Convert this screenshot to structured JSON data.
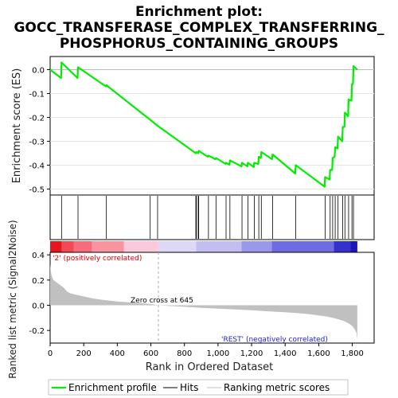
{
  "title_lines": [
    "Enrichment plot:",
    "GOCC_TRANSFERASE_COMPLEX_TRANSFERRING_",
    "PHOSPHORUS_CONTAINING_GROUPS"
  ],
  "colors": {
    "es_line": "#00ee00",
    "hits": "#000000",
    "metric_fill": "#c0c0c0",
    "pos_label": "#dd0000",
    "neg_label": "#2222cc",
    "zero_cross_line": "#aaaaaa"
  },
  "chart_data": [
    {
      "type": "line",
      "name": "enrichment-profile",
      "ylabel": "Enrichment score (ES)",
      "xlim": [
        0,
        1930
      ],
      "ylim": [
        -0.525,
        0.055
      ],
      "yticks": [
        0.0,
        -0.1,
        -0.2,
        -0.3,
        -0.4,
        -0.5
      ],
      "ytick_labels": [
        "0.0",
        "-0.1",
        "-0.2",
        "-0.3",
        "-0.4",
        "-0.5"
      ],
      "x": [
        0,
        65,
        68,
        163,
        166,
        332,
        335,
        596,
        640,
        868,
        871,
        882,
        885,
        940,
        943,
        985,
        988,
        1045,
        1048,
        1068,
        1071,
        1140,
        1143,
        1175,
        1178,
        1213,
        1216,
        1240,
        1243,
        1255,
        1258,
        1322,
        1325,
        1460,
        1463,
        1635,
        1638,
        1665,
        1668,
        1680,
        1683,
        1695,
        1698,
        1712,
        1715,
        1740,
        1743,
        1753,
        1756,
        1775,
        1778,
        1795,
        1798,
        1804,
        1807,
        1830
      ],
      "y": [
        0.0,
        -0.035,
        0.03,
        -0.035,
        0.01,
        -0.07,
        -0.065,
        -0.21,
        -0.235,
        -0.35,
        -0.345,
        -0.35,
        -0.34,
        -0.365,
        -0.36,
        -0.375,
        -0.37,
        -0.395,
        -0.39,
        -0.398,
        -0.38,
        -0.405,
        -0.39,
        -0.405,
        -0.39,
        -0.408,
        -0.39,
        -0.395,
        -0.365,
        -0.37,
        -0.345,
        -0.375,
        -0.355,
        -0.435,
        -0.4,
        -0.49,
        -0.45,
        -0.46,
        -0.42,
        -0.42,
        -0.37,
        -0.365,
        -0.325,
        -0.33,
        -0.28,
        -0.3,
        -0.24,
        -0.24,
        -0.18,
        -0.195,
        -0.125,
        -0.13,
        -0.06,
        -0.06,
        0.015,
        0.0
      ]
    },
    {
      "type": "scatter",
      "name": "hits",
      "x": [
        68,
        166,
        335,
        596,
        640,
        868,
        871,
        882,
        885,
        943,
        988,
        1048,
        1071,
        1143,
        1178,
        1216,
        1243,
        1258,
        1325,
        1463,
        1638,
        1668,
        1683,
        1698,
        1715,
        1743,
        1756,
        1778,
        1798,
        1807
      ]
    },
    {
      "type": "area",
      "name": "ranking-metric",
      "xlabel": "Rank in Ordered Dataset",
      "ylabel": "Ranked list metric (Signal2Noise)",
      "xlim": [
        0,
        1930
      ],
      "ylim": [
        -0.3,
        0.42
      ],
      "xticks": [
        0,
        200,
        400,
        600,
        800,
        1000,
        1200,
        1400,
        1600,
        1800
      ],
      "xtick_labels": [
        "0",
        "200",
        "400",
        "600",
        "800",
        "1,000",
        "1,200",
        "1,400",
        "1,600",
        "1,800"
      ],
      "yticks": [
        0.4,
        0.2,
        0.0,
        -0.2
      ],
      "ytick_labels": [
        "0.4",
        "0.2",
        "0.0",
        "-0.2"
      ],
      "x": [
        0,
        4,
        10,
        20,
        40,
        60,
        80,
        100,
        120,
        150,
        200,
        250,
        300,
        400,
        500,
        600,
        645,
        700,
        800,
        900,
        1000,
        1100,
        1200,
        1300,
        1400,
        1500,
        1550,
        1600,
        1650,
        1700,
        1750,
        1780,
        1800,
        1815,
        1825,
        1830
      ],
      "y": [
        0.33,
        0.27,
        0.23,
        0.2,
        0.18,
        0.16,
        0.14,
        0.11,
        0.095,
        0.085,
        0.07,
        0.055,
        0.045,
        0.03,
        0.02,
        0.01,
        0.0,
        -0.005,
        -0.012,
        -0.02,
        -0.027,
        -0.033,
        -0.04,
        -0.048,
        -0.055,
        -0.065,
        -0.072,
        -0.08,
        -0.09,
        -0.105,
        -0.125,
        -0.145,
        -0.165,
        -0.19,
        -0.22,
        -0.27
      ]
    }
  ],
  "annotations": {
    "zero_cross": "Zero cross at 645",
    "zero_cross_rank": 645,
    "positive": "'2' (positively correlated)",
    "negative": "'REST' (negatively correlated)"
  },
  "legend": {
    "items": [
      {
        "label": "Enrichment profile"
      },
      {
        "label": "Hits"
      },
      {
        "label": "Ranking metric scores"
      }
    ]
  }
}
